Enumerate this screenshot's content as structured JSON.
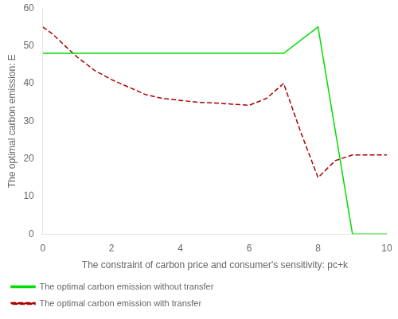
{
  "chart_data": {
    "type": "line",
    "xlabel": "The constraint of carbon price and consumer's sensitivity: pc+k",
    "ylabel": "The optimal carbon emission: E",
    "xlim": [
      0,
      10
    ],
    "ylim": [
      0,
      60
    ],
    "xticks": [
      0,
      2,
      4,
      6,
      8,
      10
    ],
    "yticks": [
      0,
      10,
      20,
      30,
      40,
      50,
      60
    ],
    "grid": false,
    "legend": "lower left",
    "series": [
      {
        "name": "The optimal carbon emission without transfer",
        "color": "#00dd00",
        "line_style": "solid",
        "x": [
          0,
          7,
          8,
          9,
          10
        ],
        "values": [
          48,
          48,
          55,
          0,
          0
        ]
      },
      {
        "name": "The optimal carbon emission with transfer",
        "color": "#aa0000",
        "line_style": "dashed",
        "x": [
          0,
          0.3,
          0.7,
          1.0,
          1.5,
          2.0,
          2.5,
          3.0,
          3.5,
          4.0,
          4.5,
          5.0,
          5.5,
          6.0,
          6.5,
          7.0,
          7.5,
          8.0,
          8.5,
          9.0,
          9.5,
          10.0
        ],
        "values": [
          55,
          53,
          49.5,
          47,
          43.5,
          41,
          39,
          37,
          36,
          35.5,
          35,
          34.8,
          34.5,
          34.2,
          36,
          40,
          27,
          15,
          19.5,
          21,
          21,
          21
        ]
      }
    ]
  }
}
